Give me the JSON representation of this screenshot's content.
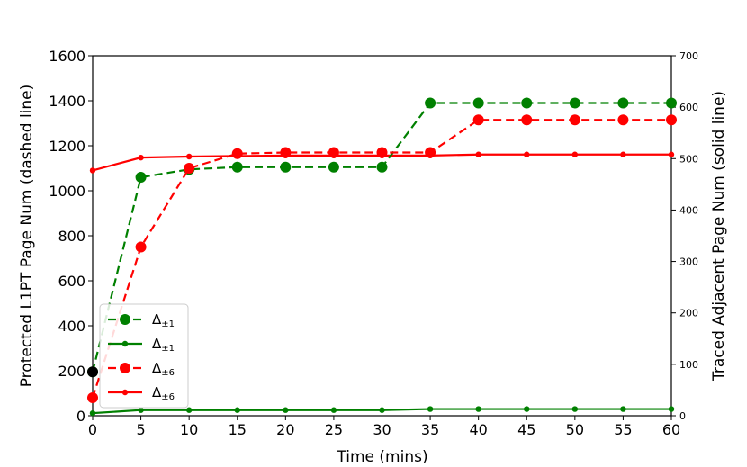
{
  "chart_data": {
    "type": "line",
    "xlabel": "Time (mins)",
    "ylabel_left": "Protected L1PT Page Num (dashed line)",
    "ylabel_right": "Traced Adjacent Page Num (solid line)",
    "x": [
      0,
      5,
      10,
      15,
      20,
      25,
      30,
      35,
      40,
      45,
      50,
      55,
      60
    ],
    "xlim": [
      0,
      60
    ],
    "ylim_left": [
      0,
      1600
    ],
    "ylim_right": [
      0,
      700
    ],
    "xticks": [
      "0",
      "5",
      "10",
      "15",
      "20",
      "25",
      "30",
      "35",
      "40",
      "45",
      "50",
      "55",
      "60"
    ],
    "yticks_left": [
      "0",
      "200",
      "400",
      "600",
      "800",
      "1000",
      "1200",
      "1400",
      "1600"
    ],
    "yticks_right": [
      "0",
      "100",
      "200",
      "300",
      "400",
      "500",
      "600",
      "700"
    ],
    "grid": false,
    "legend_position": "lower-left",
    "series": [
      {
        "name": "Δ±1",
        "name_base": "Δ",
        "name_sub": "±1",
        "axis": "left",
        "style": "dashed",
        "marker": "large",
        "color": "#008000",
        "values": [
          195,
          1060,
          1095,
          1105,
          1105,
          1105,
          1105,
          1390,
          1390,
          1390,
          1390,
          1390,
          1390
        ]
      },
      {
        "name": "Δ±1",
        "name_base": "Δ",
        "name_sub": "±1",
        "axis": "right",
        "style": "solid",
        "marker": "small",
        "color": "#008000",
        "values": [
          5,
          11,
          11,
          11,
          11,
          11,
          11,
          13,
          13,
          13,
          13,
          13,
          13
        ]
      },
      {
        "name": "Δ±6",
        "name_base": "Δ",
        "name_sub": "±6",
        "axis": "left",
        "style": "dashed",
        "marker": "large",
        "color": "#ff0000",
        "values": [
          80,
          750,
          1100,
          1165,
          1170,
          1170,
          1170,
          1170,
          1315,
          1315,
          1315,
          1315,
          1315
        ]
      },
      {
        "name": "Δ±6",
        "name_base": "Δ",
        "name_sub": "±6",
        "axis": "right",
        "style": "solid",
        "marker": "small",
        "color": "#ff0000",
        "values": [
          477,
          502,
          504,
          505,
          506,
          506,
          506,
          506,
          508,
          508,
          508,
          508,
          508
        ]
      }
    ],
    "extra_markers": [
      {
        "x": 0,
        "axis": "left",
        "y": 195,
        "color": "#000000"
      }
    ]
  }
}
